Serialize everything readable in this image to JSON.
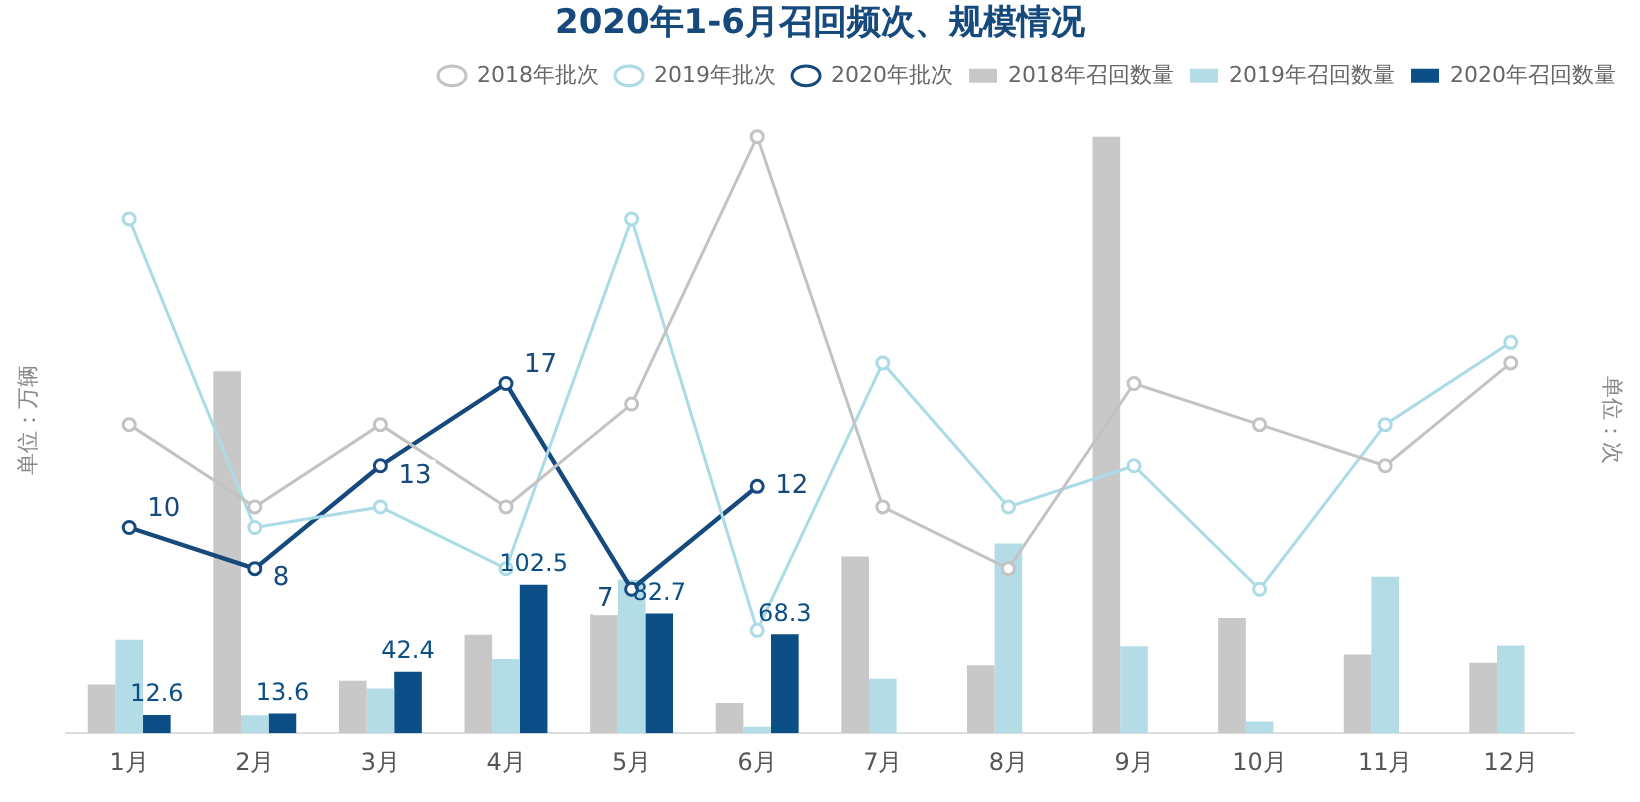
{
  "chart_data": {
    "type": "bar",
    "title": "2020年1-6月召回频次、规模情况",
    "ylabel": "单位：万辆",
    "y2label": "单位：次",
    "categories": [
      "1月",
      "2月",
      "3月",
      "4月",
      "5月",
      "6月",
      "7月",
      "8月",
      "9月",
      "10月",
      "11月",
      "12月"
    ],
    "series": [
      {
        "name": "2018年召回数量",
        "color": "#c8c8c8",
        "values": [
          33.6,
          250,
          36.2,
          68,
          82.2,
          20.8,
          122,
          46.9,
          412,
          79.6,
          54.4,
          48.6
        ]
      },
      {
        "name": "2019年召回数量",
        "color": "#b3dce6",
        "values": [
          64.5,
          12.4,
          30.9,
          51.3,
          106,
          4.4,
          37.6,
          131,
          60,
          8,
          108,
          60.6
        ]
      },
      {
        "name": "2020年召回数量",
        "color": "#0b4f86",
        "values": [
          12.6,
          13.6,
          42.4,
          102.5,
          82.7,
          68.3,
          null,
          null,
          null,
          null,
          null,
          null
        ],
        "value_labels": [
          "12.6",
          "13.6",
          "42.4",
          "102.5",
          "82.7",
          "68.3",
          null,
          null,
          null,
          null,
          null,
          null
        ]
      },
      {
        "name": "2018年批次",
        "type": "line",
        "axis": "y2",
        "color": "#c3c3c3",
        "values": [
          15,
          11,
          15,
          11,
          16,
          29,
          11,
          8,
          17,
          15,
          13,
          18
        ]
      },
      {
        "name": "2019年批次",
        "type": "line",
        "axis": "y2",
        "color": "#aadbe6",
        "values": [
          25,
          10,
          11,
          8,
          25,
          5,
          18,
          11,
          13,
          7,
          15,
          19
        ]
      },
      {
        "name": "2020年批次",
        "type": "line",
        "axis": "y2",
        "color": "#174a7c",
        "values": [
          10,
          8,
          13,
          17,
          7,
          12,
          null,
          null,
          null,
          null,
          null,
          null
        ],
        "value_labels": [
          "10",
          "8",
          "13",
          "17",
          "7",
          "12",
          null,
          null,
          null,
          null,
          null,
          null
        ]
      }
    ],
    "tick_labels": "x",
    "legend": "top right",
    "marker": "circle",
    "grid": false
  }
}
